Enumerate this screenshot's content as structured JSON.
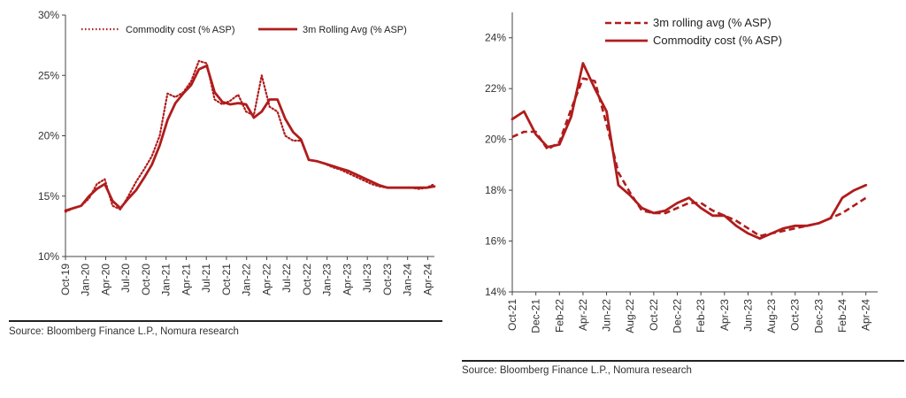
{
  "colors": {
    "series": "#b01c1c",
    "axis": "#444444",
    "text": "#333333"
  },
  "chart_data": [
    {
      "type": "line",
      "title": "",
      "xlabel": "",
      "ylabel": "",
      "ylim": [
        10,
        30
      ],
      "y_ticks": [
        10,
        15,
        20,
        25,
        30
      ],
      "y_tick_suffix": "%",
      "x_start_index": 0,
      "x_end_index": 55,
      "x_ticks": [
        {
          "i": 0,
          "label": "Oct-19"
        },
        {
          "i": 3,
          "label": "Jan-20"
        },
        {
          "i": 6,
          "label": "Apr-20"
        },
        {
          "i": 9,
          "label": "Jul-20"
        },
        {
          "i": 12,
          "label": "Oct-20"
        },
        {
          "i": 15,
          "label": "Jan-21"
        },
        {
          "i": 18,
          "label": "Apr-21"
        },
        {
          "i": 21,
          "label": "Jul-21"
        },
        {
          "i": 24,
          "label": "Oct-21"
        },
        {
          "i": 27,
          "label": "Jan-22"
        },
        {
          "i": 30,
          "label": "Apr-22"
        },
        {
          "i": 33,
          "label": "Jul-22"
        },
        {
          "i": 36,
          "label": "Oct-22"
        },
        {
          "i": 39,
          "label": "Jan-23"
        },
        {
          "i": 42,
          "label": "Apr-23"
        },
        {
          "i": 45,
          "label": "Jul-23"
        },
        {
          "i": 48,
          "label": "Oct-23"
        },
        {
          "i": 51,
          "label": "Jan-24"
        },
        {
          "i": 54,
          "label": "Apr-24"
        }
      ],
      "grid": false,
      "legend": "top",
      "series": [
        {
          "name": "Commodity cost (% ASP)",
          "style": "dotted",
          "values": [
            13.7,
            14.0,
            14.2,
            14.8,
            16.0,
            16.4,
            14.2,
            13.9,
            15.0,
            16.2,
            17.2,
            18.3,
            20.0,
            23.5,
            23.2,
            23.6,
            24.5,
            26.2,
            26.0,
            23.0,
            22.6,
            22.9,
            23.4,
            22.0,
            21.7,
            25.0,
            22.4,
            22.0,
            20.0,
            19.6,
            19.6,
            18.0,
            17.9,
            17.7,
            17.4,
            17.2,
            16.9,
            16.6,
            16.3,
            16.0,
            15.8,
            15.7,
            15.7,
            15.7,
            15.7,
            15.6,
            15.7,
            16.0
          ]
        },
        {
          "name": "3m Rolling Avg (% ASP)",
          "style": "solid",
          "values": [
            13.8,
            14.0,
            14.2,
            15.0,
            15.6,
            16.0,
            14.6,
            14.0,
            14.8,
            15.5,
            16.5,
            17.6,
            19.2,
            21.3,
            22.7,
            23.5,
            24.2,
            25.5,
            25.8,
            23.6,
            22.8,
            22.6,
            22.7,
            22.6,
            21.5,
            22.0,
            23.0,
            23.0,
            21.4,
            20.3,
            19.7,
            18.0,
            17.9,
            17.7,
            17.5,
            17.3,
            17.1,
            16.8,
            16.5,
            16.2,
            15.9,
            15.7,
            15.7,
            15.7,
            15.7,
            15.7,
            15.7,
            15.8
          ]
        }
      ],
      "series_x_start": 0,
      "series_x_step": 1.1702,
      "source": "Source: Bloomberg Finance L.P., Nomura research"
    },
    {
      "type": "line",
      "title": "",
      "xlabel": "",
      "ylabel": "",
      "ylim": [
        14,
        25
      ],
      "y_ticks": [
        14,
        16,
        18,
        20,
        22,
        24
      ],
      "y_tick_suffix": "%",
      "x_start_index": 0,
      "x_end_index": 31,
      "x_ticks": [
        {
          "i": 0,
          "label": "Oct-21"
        },
        {
          "i": 2,
          "label": "Dec-21"
        },
        {
          "i": 4,
          "label": "Feb-22"
        },
        {
          "i": 6,
          "label": "Apr-22"
        },
        {
          "i": 8,
          "label": "Jun-22"
        },
        {
          "i": 10,
          "label": "Aug-22"
        },
        {
          "i": 12,
          "label": "Oct-22"
        },
        {
          "i": 14,
          "label": "Dec-22"
        },
        {
          "i": 16,
          "label": "Feb-23"
        },
        {
          "i": 18,
          "label": "Apr-23"
        },
        {
          "i": 20,
          "label": "Jun-23"
        },
        {
          "i": 22,
          "label": "Aug-23"
        },
        {
          "i": 24,
          "label": "Oct-23"
        },
        {
          "i": 26,
          "label": "Dec-23"
        },
        {
          "i": 28,
          "label": "Feb-24"
        },
        {
          "i": 30,
          "label": "Apr-24"
        }
      ],
      "grid": false,
      "legend": "top",
      "series": [
        {
          "name": "3m rolling avg (% ASP)",
          "style": "dashed",
          "values": [
            20.1,
            20.3,
            20.3,
            19.6,
            19.9,
            21.2,
            22.4,
            22.3,
            20.6,
            18.7,
            17.9,
            17.2,
            17.1,
            17.1,
            17.3,
            17.5,
            17.5,
            17.2,
            17.0,
            16.8,
            16.5,
            16.2,
            16.3,
            16.4,
            16.5,
            16.6,
            16.7,
            16.9,
            17.1,
            17.4,
            17.7
          ]
        },
        {
          "name": "Commodity cost (% ASP)",
          "style": "solid",
          "values": [
            20.8,
            21.1,
            20.2,
            19.7,
            19.8,
            20.9,
            23.0,
            22.0,
            21.1,
            18.2,
            17.8,
            17.3,
            17.1,
            17.2,
            17.5,
            17.7,
            17.3,
            17.0,
            17.0,
            16.6,
            16.3,
            16.1,
            16.3,
            16.5,
            16.6,
            16.6,
            16.7,
            16.9,
            17.7,
            18.0,
            18.2
          ]
        }
      ],
      "series_x_start": 0,
      "series_x_step": 1,
      "source": "Source: Bloomberg Finance L.P., Nomura research"
    }
  ]
}
